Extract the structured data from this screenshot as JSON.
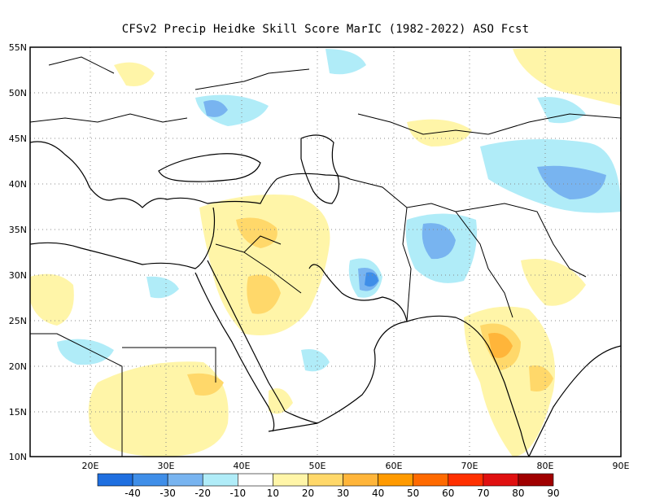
{
  "title": "CFSv2 Precip Heidke Skill Score MarIC (1982-2022) ASO Fcst",
  "map": {
    "lon_range": [
      12,
      90
    ],
    "lat_range": [
      10,
      55
    ],
    "lat_ticks": [
      "55N",
      "50N",
      "45N",
      "40N",
      "35N",
      "30N",
      "25N",
      "20N",
      "15N",
      "10N"
    ],
    "lon_ticks": [
      "20E",
      "30E",
      "40E",
      "50E",
      "60E",
      "70E",
      "80E",
      "90E"
    ],
    "gridlines": "dotted",
    "region": "Middle East, South-West Asia and North-East Africa"
  },
  "colorbar": {
    "labels": [
      "-40",
      "-30",
      "-20",
      "-10",
      "10",
      "20",
      "30",
      "40",
      "50",
      "60",
      "70",
      "80",
      "90"
    ],
    "colors": [
      "#1f6fe0",
      "#3f8ee8",
      "#78b4f0",
      "#b0ecf8",
      "#ffffff",
      "#fff5a8",
      "#ffd86a",
      "#ffb53a",
      "#ff9a00",
      "#ff6a00",
      "#ff3000",
      "#e01010",
      "#a00000"
    ]
  }
}
